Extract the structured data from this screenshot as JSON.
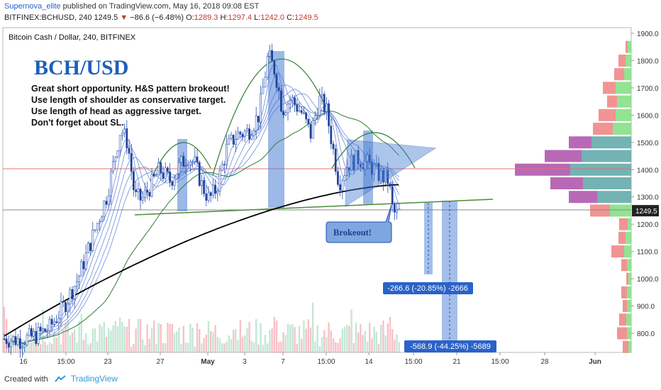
{
  "header": {
    "author": "Supernova_elite",
    "published_text": "published on TradingView.com, May 16, 2018 09:08 EST",
    "symbol_interval": "BITFINEX:BCHUSD, 240",
    "last": "1249.5",
    "change_arrow": "▼",
    "change": "−86.6 (−6.48%)",
    "o_label": "O:",
    "o_value": "1289.3",
    "h_label": "H:",
    "h_value": "1297.4",
    "l_label": "L:",
    "l_value": "1242.0",
    "c_label": "C:",
    "c_value": "1249.5"
  },
  "footer": {
    "created_with": "Created with",
    "brand": "TradingView"
  },
  "chart_data": {
    "type": "candlestick",
    "title": "Bitcoin Cash / Dollar, 240, BITFINEX",
    "y_axis": {
      "ticks": [
        800.0,
        900.0,
        1000.0,
        1100.0,
        1200.0,
        1300.0,
        1400.0,
        1500.0,
        1600.0,
        1700.0,
        1800.0,
        1900.0
      ],
      "tick_labels": [
        "800.0",
        "900.0",
        "1000.0",
        "1100.0",
        "1200.0",
        "1300.0",
        "1400.0",
        "1500.0",
        "1600.0",
        "1700.0",
        "1800.0",
        "1900.0"
      ],
      "range": [
        720,
        1920
      ],
      "last_price_label": "1249.5"
    },
    "x_axis": {
      "tick_labels": [
        "16",
        "15:00",
        "23",
        "27",
        "May",
        "3",
        "7",
        "15:00",
        "14",
        "15:00",
        "21",
        "15:00",
        "28",
        "Jun"
      ]
    },
    "annotations": {
      "heading": "BCH/USD",
      "notes": [
        "Great short opportunity. H&S pattern brokeout!",
        "Use length of shoulder as conservative target.",
        "Use length of head as aggressive target.",
        "Don't forget about SL."
      ],
      "callout": "Brokeout!",
      "target1": "-266.6 (-20.85%) -2666",
      "target2": "-568.9 (-44.25%) -5689"
    },
    "levels": {
      "horizontal_red": 1400,
      "horizontal_gray": 1249.5
    },
    "volume_profile": [
      {
        "price": 1850,
        "buy": 5,
        "sell": 3
      },
      {
        "price": 1800,
        "buy": 8,
        "sell": 10
      },
      {
        "price": 1750,
        "buy": 10,
        "sell": 14
      },
      {
        "price": 1700,
        "buy": 22,
        "sell": 18
      },
      {
        "price": 1650,
        "buy": 20,
        "sell": 14
      },
      {
        "price": 1600,
        "buy": 22,
        "sell": 24
      },
      {
        "price": 1550,
        "buy": 26,
        "sell": 28
      },
      {
        "price": 1500,
        "buy": 56,
        "sell": 32
      },
      {
        "price": 1450,
        "buy": 70,
        "sell": 52
      },
      {
        "price": 1400,
        "buy": 86,
        "sell": 78
      },
      {
        "price": 1350,
        "buy": 68,
        "sell": 46
      },
      {
        "price": 1300,
        "buy": 48,
        "sell": 40
      },
      {
        "price": 1250,
        "buy": 30,
        "sell": 28
      },
      {
        "price": 1200,
        "buy": 5,
        "sell": 12
      },
      {
        "price": 1150,
        "buy": 8,
        "sell": 10
      },
      {
        "price": 1100,
        "buy": 10,
        "sell": 18
      },
      {
        "price": 1050,
        "buy": 6,
        "sell": 8
      },
      {
        "price": 1000,
        "buy": 4,
        "sell": 3
      },
      {
        "price": 950,
        "buy": 6,
        "sell": 8
      },
      {
        "price": 900,
        "buy": 6,
        "sell": 6
      },
      {
        "price": 850,
        "buy": 7,
        "sell": 10
      },
      {
        "price": 800,
        "buy": 6,
        "sell": 14
      },
      {
        "price": 750,
        "buy": 4,
        "sell": 8
      }
    ],
    "colors": {
      "up": "#53b987",
      "down": "#eb4d5c",
      "candle": "#2a4fb0",
      "ma200": "#000000",
      "ma_green": "#2e7d32",
      "box": "#4a7fd4",
      "profile_buy": "#5aa6a6",
      "profile_sell": "#ab4fa8",
      "profile_up_small": "#7fde7f",
      "profile_down_small": "#f08080"
    }
  }
}
